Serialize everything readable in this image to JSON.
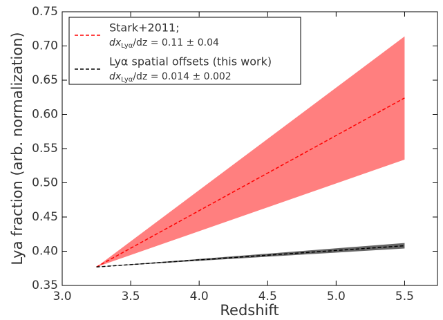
{
  "chart_data": {
    "type": "line",
    "x_label": "Redshift",
    "y_label": "Lya fraction (arb. normalization)",
    "xlim": [
      3.0,
      5.74
    ],
    "ylim": [
      0.35,
      0.75
    ],
    "xticks": [
      {
        "value": 3,
        "label": "3.0"
      },
      3.5,
      {
        "value": 4,
        "label": "4.0"
      },
      4.5,
      {
        "value": 5,
        "label": "5.0"
      },
      5.5
    ],
    "yticks": [
      0.35,
      {
        "value": 0.4,
        "label": "0.40"
      },
      0.45,
      {
        "value": 0.5,
        "label": "0.50"
      },
      0.55,
      {
        "value": 0.6,
        "label": "0.60"
      },
      0.65,
      {
        "value": 0.7,
        "label": "0.70"
      },
      0.75
    ],
    "series": [
      {
        "name": "Stark+2011;",
        "note": [
          "dx",
          "Lyα",
          "/dz = 0.11 ± 0.04"
        ],
        "color": "#ff0000",
        "band_color": "#ff7f7f",
        "x": [
          3.25,
          5.5
        ],
        "values": [
          0.377,
          0.624
        ],
        "band_lower": [
          0.377,
          0.534
        ],
        "band_upper": [
          0.377,
          0.714
        ]
      },
      {
        "name": "Lyα spatial offsets (this work)",
        "note": [
          "dx",
          "Lyα",
          "/dz = 0.014 ± 0.002"
        ],
        "color": "#000000",
        "band_color": "#666666",
        "x": [
          3.25,
          5.5
        ],
        "values": [
          0.377,
          0.408
        ],
        "band_lower": [
          0.377,
          0.404
        ],
        "band_upper": [
          0.377,
          0.412
        ]
      }
    ]
  }
}
